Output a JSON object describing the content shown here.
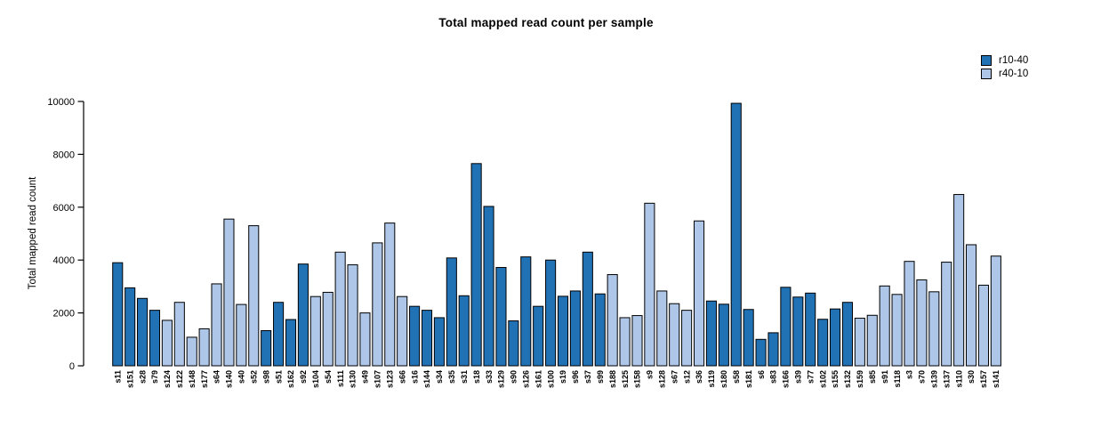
{
  "page": {
    "background": "#ffffff"
  },
  "chart_data": {
    "type": "bar",
    "title": "Total mapped read count per sample",
    "ylabel": "Total mapped read count",
    "xlabel": "",
    "ylim": [
      0,
      10000
    ],
    "yticks": [
      0,
      2000,
      4000,
      6000,
      8000,
      10000
    ],
    "grid": false,
    "legend_position": "top-right",
    "series": [
      {
        "name": "r10-40",
        "color": "#2171b5"
      },
      {
        "name": "r40-10",
        "color": "#aec6e8"
      }
    ],
    "bar_border_color": "#000000",
    "bars": [
      {
        "label": "s11",
        "value": 3900,
        "series": "r10-40"
      },
      {
        "label": "s151",
        "value": 2950,
        "series": "r10-40"
      },
      {
        "label": "s28",
        "value": 2550,
        "series": "r10-40"
      },
      {
        "label": "s79",
        "value": 2100,
        "series": "r10-40"
      },
      {
        "label": "s124",
        "value": 1720,
        "series": "r40-10"
      },
      {
        "label": "s122",
        "value": 2400,
        "series": "r40-10"
      },
      {
        "label": "s148",
        "value": 1080,
        "series": "r40-10"
      },
      {
        "label": "s177",
        "value": 1400,
        "series": "r40-10"
      },
      {
        "label": "s64",
        "value": 3100,
        "series": "r40-10"
      },
      {
        "label": "s140",
        "value": 5550,
        "series": "r40-10"
      },
      {
        "label": "s40",
        "value": 2320,
        "series": "r40-10"
      },
      {
        "label": "s52",
        "value": 5300,
        "series": "r40-10"
      },
      {
        "label": "s98",
        "value": 1330,
        "series": "r10-40"
      },
      {
        "label": "s51",
        "value": 2400,
        "series": "r10-40"
      },
      {
        "label": "s162",
        "value": 1750,
        "series": "r10-40"
      },
      {
        "label": "s92",
        "value": 3850,
        "series": "r10-40"
      },
      {
        "label": "s104",
        "value": 2620,
        "series": "r40-10"
      },
      {
        "label": "s54",
        "value": 2780,
        "series": "r40-10"
      },
      {
        "label": "s111",
        "value": 4300,
        "series": "r40-10"
      },
      {
        "label": "s130",
        "value": 3820,
        "series": "r40-10"
      },
      {
        "label": "s49",
        "value": 2000,
        "series": "r40-10"
      },
      {
        "label": "s107",
        "value": 4650,
        "series": "r40-10"
      },
      {
        "label": "s123",
        "value": 5400,
        "series": "r40-10"
      },
      {
        "label": "s66",
        "value": 2620,
        "series": "r40-10"
      },
      {
        "label": "s16",
        "value": 2250,
        "series": "r10-40"
      },
      {
        "label": "s144",
        "value": 2100,
        "series": "r10-40"
      },
      {
        "label": "s34",
        "value": 1820,
        "series": "r10-40"
      },
      {
        "label": "s35",
        "value": 4080,
        "series": "r10-40"
      },
      {
        "label": "s31",
        "value": 2650,
        "series": "r10-40"
      },
      {
        "label": "s18",
        "value": 7650,
        "series": "r10-40"
      },
      {
        "label": "s33",
        "value": 6030,
        "series": "r10-40"
      },
      {
        "label": "s129",
        "value": 3720,
        "series": "r10-40"
      },
      {
        "label": "s90",
        "value": 1700,
        "series": "r10-40"
      },
      {
        "label": "s126",
        "value": 4120,
        "series": "r10-40"
      },
      {
        "label": "s161",
        "value": 2250,
        "series": "r10-40"
      },
      {
        "label": "s100",
        "value": 4000,
        "series": "r10-40"
      },
      {
        "label": "s19",
        "value": 2630,
        "series": "r10-40"
      },
      {
        "label": "s96",
        "value": 2830,
        "series": "r10-40"
      },
      {
        "label": "s37",
        "value": 4300,
        "series": "r10-40"
      },
      {
        "label": "s99",
        "value": 2720,
        "series": "r10-40"
      },
      {
        "label": "s188",
        "value": 3450,
        "series": "r40-10"
      },
      {
        "label": "s125",
        "value": 1820,
        "series": "r40-10"
      },
      {
        "label": "s158",
        "value": 1900,
        "series": "r40-10"
      },
      {
        "label": "s9",
        "value": 6150,
        "series": "r40-10"
      },
      {
        "label": "s128",
        "value": 2830,
        "series": "r40-10"
      },
      {
        "label": "s67",
        "value": 2350,
        "series": "r40-10"
      },
      {
        "label": "s12",
        "value": 2100,
        "series": "r40-10"
      },
      {
        "label": "s36",
        "value": 5480,
        "series": "r40-10"
      },
      {
        "label": "s119",
        "value": 2450,
        "series": "r10-40"
      },
      {
        "label": "s180",
        "value": 2330,
        "series": "r10-40"
      },
      {
        "label": "s58",
        "value": 9930,
        "series": "r10-40"
      },
      {
        "label": "s181",
        "value": 2130,
        "series": "r10-40"
      },
      {
        "label": "s6",
        "value": 1000,
        "series": "r10-40"
      },
      {
        "label": "s83",
        "value": 1250,
        "series": "r10-40"
      },
      {
        "label": "s166",
        "value": 2970,
        "series": "r10-40"
      },
      {
        "label": "s39",
        "value": 2600,
        "series": "r10-40"
      },
      {
        "label": "s77",
        "value": 2750,
        "series": "r10-40"
      },
      {
        "label": "s102",
        "value": 1760,
        "series": "r10-40"
      },
      {
        "label": "s155",
        "value": 2150,
        "series": "r10-40"
      },
      {
        "label": "s132",
        "value": 2400,
        "series": "r10-40"
      },
      {
        "label": "s159",
        "value": 1800,
        "series": "r40-10"
      },
      {
        "label": "s85",
        "value": 1910,
        "series": "r40-10"
      },
      {
        "label": "s91",
        "value": 3020,
        "series": "r40-10"
      },
      {
        "label": "s118",
        "value": 2700,
        "series": "r40-10"
      },
      {
        "label": "s3",
        "value": 3950,
        "series": "r40-10"
      },
      {
        "label": "s70",
        "value": 3250,
        "series": "r40-10"
      },
      {
        "label": "s139",
        "value": 2800,
        "series": "r40-10"
      },
      {
        "label": "s137",
        "value": 3920,
        "series": "r40-10"
      },
      {
        "label": "s110",
        "value": 6480,
        "series": "r40-10"
      },
      {
        "label": "s30",
        "value": 4580,
        "series": "r40-10"
      },
      {
        "label": "s157",
        "value": 3050,
        "series": "r40-10"
      },
      {
        "label": "s141",
        "value": 4150,
        "series": "r40-10"
      }
    ]
  }
}
